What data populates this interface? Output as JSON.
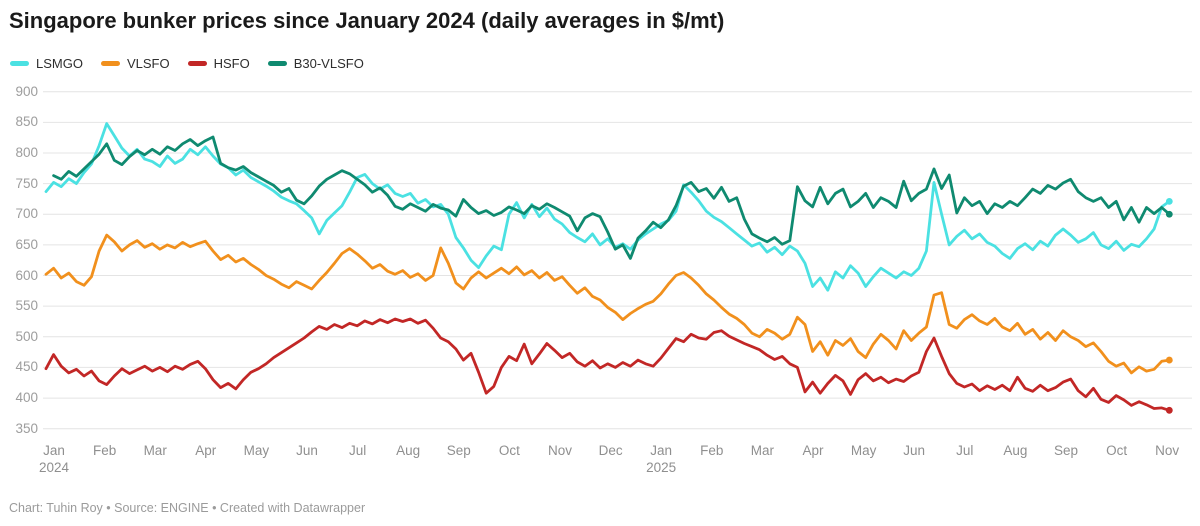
{
  "header": {
    "title": "Singapore bunker prices since January 2024 (daily averages in $/mt)"
  },
  "footer": {
    "text": "Chart: Tuhin Roy • Source: ENGINE • Created with Datawrapper"
  },
  "colors": {
    "lsmgo": "#4be1e2",
    "vlsfo": "#f1901d",
    "hsfo": "#c22726",
    "b30": "#0f8a70",
    "grid": "#e4e4e4",
    "tick_text": "#9d9d9d"
  },
  "chart_data": {
    "type": "line",
    "title": "Singapore bunker prices since January 2024 (daily averages in $/mt)",
    "unit": "$/mt",
    "grid": "horizontal",
    "legend_position": "top-left",
    "y_axis": {
      "min": 350,
      "max": 900,
      "step": 50
    },
    "x_axis": {
      "note": "x values are months since Jan 2024 (0 = Jan 1 2024)",
      "months": [
        {
          "label": "Jan",
          "year": "2024"
        },
        {
          "label": "Feb"
        },
        {
          "label": "Mar"
        },
        {
          "label": "Apr"
        },
        {
          "label": "May"
        },
        {
          "label": "Jun"
        },
        {
          "label": "Jul"
        },
        {
          "label": "Aug"
        },
        {
          "label": "Sep"
        },
        {
          "label": "Oct"
        },
        {
          "label": "Nov"
        },
        {
          "label": "Dec"
        },
        {
          "label": "Jan",
          "year": "2025"
        },
        {
          "label": "Feb"
        },
        {
          "label": "Mar"
        },
        {
          "label": "Apr"
        },
        {
          "label": "May"
        },
        {
          "label": "Jun"
        },
        {
          "label": "Jul"
        },
        {
          "label": "Aug"
        },
        {
          "label": "Sep"
        },
        {
          "label": "Oct"
        },
        {
          "label": "Nov"
        }
      ]
    },
    "series": [
      {
        "name": "LSMGO",
        "color": "#4be1e2",
        "t0": 0,
        "dt": 0.15,
        "values": [
          737,
          752,
          745,
          758,
          750,
          768,
          782,
          812,
          848,
          828,
          808,
          795,
          806,
          790,
          786,
          778,
          795,
          783,
          790,
          806,
          797,
          810,
          795,
          782,
          776,
          764,
          772,
          760,
          753,
          746,
          738,
          728,
          722,
          717,
          706,
          694,
          668,
          690,
          702,
          714,
          736,
          760,
          765,
          750,
          741,
          748,
          734,
          729,
          734,
          718,
          724,
          712,
          716,
          700,
          662,
          645,
          625,
          613,
          632,
          648,
          642,
          700,
          719,
          694,
          716,
          696,
          710,
          692,
          684,
          670,
          662,
          655,
          668,
          650,
          660,
          646,
          652,
          643,
          658,
          668,
          676,
          684,
          690,
          705,
          748,
          736,
          722,
          705,
          695,
          688,
          678,
          668,
          658,
          648,
          653,
          638,
          646,
          634,
          648,
          640,
          620,
          582,
          596,
          576,
          606,
          596,
          616,
          604,
          582,
          598,
          612,
          604,
          596,
          606,
          600,
          612,
          640,
          752,
          700,
          650,
          664,
          674,
          660,
          668,
          654,
          648,
          636,
          628,
          644,
          652,
          642,
          656,
          648,
          666,
          676,
          666,
          654,
          660,
          670,
          650,
          644,
          656,
          641,
          651,
          647,
          660,
          676,
          712,
          721
        ]
      },
      {
        "name": "VLSFO",
        "color": "#f1901d",
        "t0": 0,
        "dt": 0.15,
        "values": [
          602,
          612,
          596,
          604,
          590,
          584,
          598,
          640,
          666,
          655,
          640,
          650,
          657,
          646,
          652,
          643,
          650,
          645,
          654,
          647,
          652,
          656,
          640,
          626,
          633,
          622,
          628,
          618,
          610,
          600,
          594,
          586,
          580,
          590,
          584,
          578,
          592,
          605,
          620,
          636,
          644,
          635,
          624,
          612,
          618,
          607,
          602,
          608,
          597,
          603,
          592,
          600,
          645,
          620,
          588,
          578,
          596,
          606,
          596,
          604,
          612,
          603,
          614,
          601,
          608,
          596,
          605,
          592,
          598,
          584,
          571,
          580,
          566,
          560,
          548,
          540,
          528,
          538,
          546,
          553,
          558,
          570,
          586,
          600,
          605,
          596,
          584,
          570,
          560,
          548,
          537,
          530,
          520,
          506,
          500,
          512,
          506,
          496,
          504,
          532,
          520,
          476,
          492,
          470,
          494,
          486,
          497,
          476,
          466,
          488,
          504,
          494,
          480,
          510,
          494,
          506,
          516,
          568,
          572,
          520,
          514,
          528,
          536,
          526,
          520,
          530,
          516,
          510,
          522,
          504,
          512,
          496,
          507,
          494,
          510,
          500,
          494,
          484,
          490,
          476,
          460,
          452,
          457,
          441,
          451,
          444,
          447,
          460,
          462
        ]
      },
      {
        "name": "HSFO",
        "color": "#c22726",
        "t0": 0,
        "dt": 0.15,
        "values": [
          448,
          471,
          452,
          441,
          447,
          436,
          444,
          428,
          422,
          436,
          448,
          440,
          446,
          452,
          444,
          450,
          443,
          452,
          447,
          455,
          460,
          448,
          430,
          417,
          424,
          415,
          430,
          442,
          448,
          456,
          466,
          474,
          482,
          490,
          498,
          508,
          517,
          512,
          520,
          515,
          522,
          518,
          526,
          521,
          528,
          523,
          529,
          525,
          529,
          522,
          527,
          514,
          498,
          492,
          480,
          462,
          473,
          442,
          408,
          419,
          450,
          468,
          461,
          488,
          456,
          472,
          489,
          478,
          466,
          473,
          459,
          452,
          461,
          449,
          456,
          450,
          458,
          452,
          462,
          456,
          452,
          465,
          481,
          497,
          492,
          504,
          498,
          496,
          507,
          510,
          501,
          495,
          489,
          484,
          479,
          470,
          463,
          468,
          456,
          450,
          410,
          426,
          408,
          424,
          437,
          428,
          406,
          430,
          440,
          428,
          434,
          425,
          431,
          427,
          436,
          442,
          476,
          498,
          468,
          440,
          424,
          418,
          423,
          412,
          420,
          414,
          421,
          412,
          434,
          416,
          411,
          421,
          412,
          417,
          426,
          431,
          412,
          402,
          416,
          398,
          393,
          404,
          397,
          388,
          394,
          389,
          383,
          384,
          380
        ]
      },
      {
        "name": "B30-VLSFO",
        "color": "#0f8a70",
        "t0": 0.15,
        "dt": 0.15,
        "values": [
          763,
          757,
          770,
          762,
          774,
          786,
          798,
          815,
          788,
          781,
          794,
          804,
          797,
          806,
          798,
          810,
          804,
          815,
          822,
          812,
          820,
          826,
          783,
          776,
          772,
          778,
          768,
          761,
          754,
          747,
          736,
          742,
          723,
          717,
          730,
          746,
          757,
          764,
          771,
          766,
          757,
          748,
          736,
          743,
          731,
          713,
          708,
          717,
          711,
          705,
          716,
          710,
          707,
          697,
          724,
          711,
          701,
          706,
          698,
          703,
          712,
          707,
          701,
          714,
          708,
          717,
          711,
          704,
          697,
          673,
          694,
          701,
          696,
          671,
          643,
          650,
          628,
          661,
          673,
          687,
          678,
          691,
          714,
          746,
          752,
          737,
          742,
          726,
          744,
          721,
          727,
          692,
          668,
          661,
          655,
          662,
          651,
          657,
          745,
          722,
          712,
          744,
          717,
          734,
          741,
          712,
          721,
          734,
          711,
          727,
          721,
          711,
          754,
          722,
          734,
          741,
          774,
          742,
          764,
          702,
          727,
          714,
          721,
          701,
          717,
          711,
          721,
          714,
          727,
          741,
          734,
          747,
          741,
          751,
          757,
          737,
          727,
          721,
          727,
          711,
          721,
          691,
          711,
          687,
          711,
          701,
          711,
          700
        ]
      }
    ]
  }
}
